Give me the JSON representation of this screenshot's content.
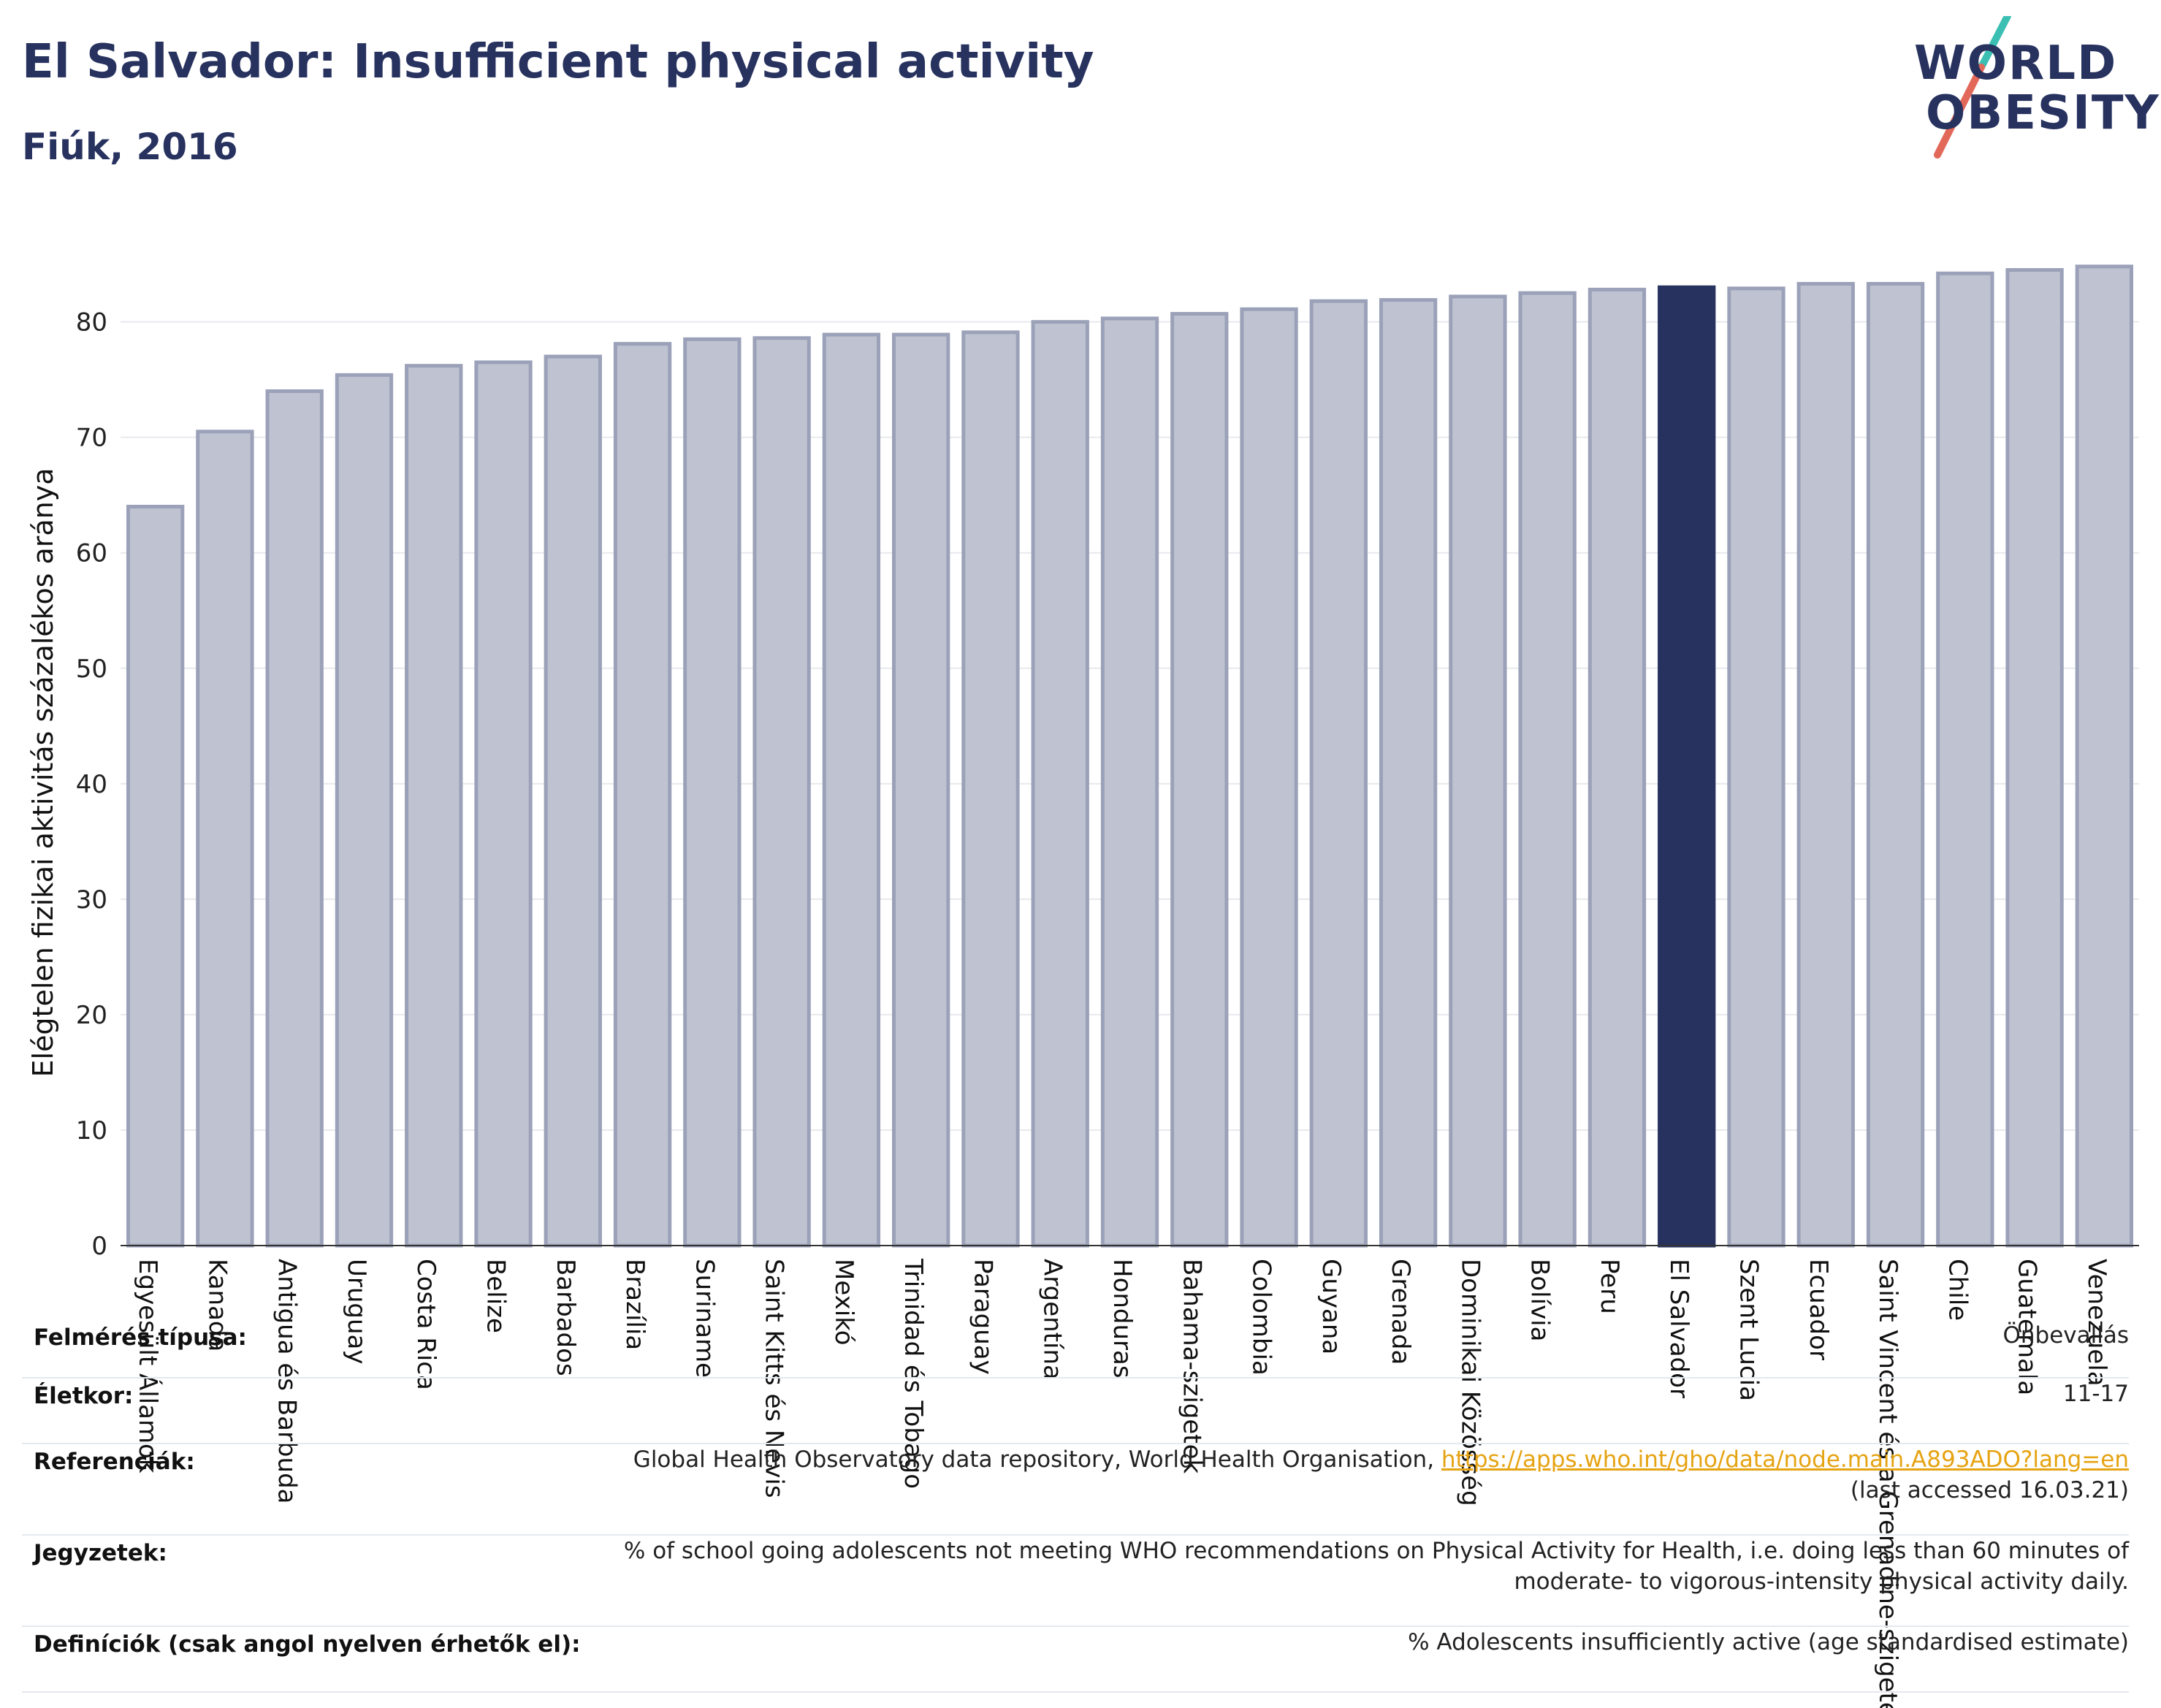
{
  "title": "El Salvador: Insufficient physical activity",
  "subtitle": "Fiúk, 2016",
  "logo": {
    "line1": "WORLD",
    "line2": "OBESITY"
  },
  "colors": {
    "bar": "#bfc3d1",
    "bar_stroke": "#9ba1b8",
    "highlight": "#27325f",
    "title": "#27325f",
    "link": "#e6a312",
    "slash_top": "#3bbfb3",
    "slash_bottom": "#e2685a"
  },
  "chart_data": {
    "type": "bar",
    "title": "El Salvador: Insufficient physical activity",
    "subtitle": "Fiúk, 2016",
    "ylabel": "Elégtelen fizikai aktivitás százalékos aránya",
    "xlabel": "",
    "ylim": [
      0,
      87
    ],
    "yticks": [
      0,
      10,
      20,
      30,
      40,
      50,
      60,
      70,
      80
    ],
    "grid": true,
    "highlight": "El Salvador",
    "categories": [
      "Egyesült Államok",
      "Kanada",
      "Antigua és Barbuda",
      "Uruguay",
      "Costa Rica",
      "Belize",
      "Barbados",
      "Brazília",
      "Suriname",
      "Saint Kitts és Nevis",
      "Mexikó",
      "Trinidad és Tobago",
      "Paraguay",
      "Argentína",
      "Honduras",
      "Bahama-szigetek",
      "Colombia",
      "Guyana",
      "Grenada",
      "Dominikai Közösség",
      "Bolívia",
      "Peru",
      "El Salvador",
      "Szent Lucia",
      "Ecuador",
      "Saint Vincent és a Grenadine-szigetek",
      "Chile",
      "Guatemala",
      "Venezuela"
    ],
    "values": [
      64.0,
      70.5,
      74.0,
      75.4,
      76.2,
      76.5,
      77.0,
      78.1,
      78.5,
      78.6,
      78.9,
      78.9,
      79.1,
      80.0,
      80.3,
      80.7,
      81.1,
      81.8,
      81.9,
      82.2,
      82.5,
      82.8,
      83.0,
      82.9,
      83.3,
      83.3,
      84.2,
      84.5,
      84.8
    ]
  },
  "meta": [
    {
      "label": "Felmérés típusa:",
      "lines": [
        "Önbevallás"
      ]
    },
    {
      "label": "Életkor:",
      "lines": [
        "11-17"
      ]
    },
    {
      "label": "Referenciák:",
      "pre": "Global Health Observatory data repository, World Health Organisation, ",
      "link": "https://apps.who.int/gho/data/node.main.A893ADO?lang=en",
      "lines2": "(last accessed 16.03.21)"
    },
    {
      "label": "Jegyzetek:",
      "lines": [
        "% of school going adolescents not meeting WHO recommendations on Physical Activity for Health, i.e. doing less than 60 minutes of",
        "moderate- to vigorous-intensity physical activity daily."
      ]
    },
    {
      "label": "Definíciók (csak angol nyelven érhetők el):",
      "lines": [
        "% Adolescents insufficiently active (age standardised estimate)"
      ]
    }
  ]
}
